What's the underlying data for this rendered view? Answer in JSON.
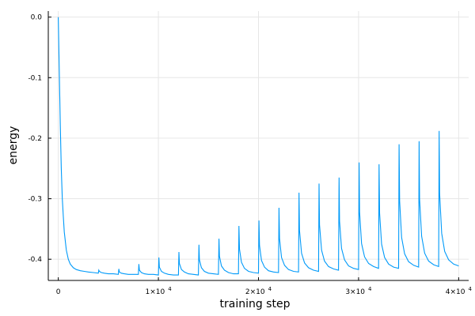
{
  "chart_data": {
    "type": "line",
    "title": "",
    "xlabel": "training step",
    "ylabel": "energy",
    "xlim": [
      -1000,
      41000
    ],
    "ylim": [
      -0.435,
      0.01
    ],
    "grid": true,
    "legend": "none",
    "colors": {
      "series": "#009AF9",
      "grid": "#E6E6E6",
      "axis": "#000000"
    },
    "x_ticks": [
      {
        "value": 0,
        "mantissa": "0",
        "exp": ""
      },
      {
        "value": 10000,
        "mantissa": "1×10",
        "exp": "4"
      },
      {
        "value": 20000,
        "mantissa": "2×10",
        "exp": "4"
      },
      {
        "value": 30000,
        "mantissa": "3×10",
        "exp": "4"
      },
      {
        "value": 40000,
        "mantissa": "4×10",
        "exp": "4"
      }
    ],
    "y_ticks": [
      {
        "value": 0.0,
        "label": "0.0"
      },
      {
        "value": -0.1,
        "label": "-0.1"
      },
      {
        "value": -0.2,
        "label": "-0.2"
      },
      {
        "value": -0.3,
        "label": "-0.3"
      },
      {
        "value": -0.4,
        "label": "-0.4"
      }
    ],
    "series": [
      {
        "x": [
          0,
          100,
          200,
          300,
          400,
          500,
          600,
          800,
          1000,
          1200,
          1500,
          1800,
          2200,
          2600,
          3000,
          3500,
          4000,
          4050,
          4100,
          4300,
          4600,
          5000,
          5500,
          6000,
          6050,
          6100,
          6300,
          6600,
          7000,
          7500,
          8000,
          8050,
          8100,
          8300,
          8600,
          9000,
          9500,
          10000,
          10050,
          10100,
          10300,
          10600,
          11000,
          11500,
          12000,
          12050,
          12100,
          12300,
          12600,
          13000,
          13500,
          14000,
          14050,
          14100,
          14300,
          14600,
          15000,
          15500,
          16000,
          16050,
          16100,
          16300,
          16600,
          17000,
          17500,
          18000,
          18050,
          18100,
          18300,
          18600,
          19000,
          19500,
          20000,
          20050,
          20100,
          20300,
          20600,
          21000,
          21500,
          22000,
          22050,
          22100,
          22300,
          22600,
          23000,
          23500,
          24000,
          24050,
          24100,
          24300,
          24600,
          25000,
          25500,
          26000,
          26050,
          26100,
          26300,
          26600,
          27000,
          27500,
          28000,
          28050,
          28100,
          28300,
          28600,
          29000,
          29500,
          30000,
          30050,
          30100,
          30300,
          30600,
          31000,
          31500,
          32000,
          32050,
          32100,
          32300,
          32600,
          33000,
          33500,
          34000,
          34050,
          34100,
          34300,
          34600,
          35000,
          35500,
          36000,
          36050,
          36100,
          36300,
          36600,
          37000,
          37500,
          38000,
          38050,
          38100,
          38300,
          38600,
          39000,
          39500,
          40000
        ],
        "y": [
          0.0,
          -0.09,
          -0.18,
          -0.25,
          -0.3,
          -0.33,
          -0.355,
          -0.385,
          -0.4,
          -0.408,
          -0.414,
          -0.417,
          -0.419,
          -0.42,
          -0.421,
          -0.422,
          -0.423,
          -0.418,
          -0.42,
          -0.422,
          -0.423,
          -0.424,
          -0.424,
          -0.425,
          -0.416,
          -0.421,
          -0.423,
          -0.424,
          -0.425,
          -0.425,
          -0.425,
          -0.408,
          -0.418,
          -0.422,
          -0.424,
          -0.425,
          -0.425,
          -0.426,
          -0.397,
          -0.413,
          -0.42,
          -0.423,
          -0.425,
          -0.426,
          -0.426,
          -0.388,
          -0.407,
          -0.417,
          -0.421,
          -0.424,
          -0.425,
          -0.426,
          -0.376,
          -0.401,
          -0.414,
          -0.42,
          -0.423,
          -0.424,
          -0.425,
          -0.366,
          -0.395,
          -0.411,
          -0.418,
          -0.422,
          -0.424,
          -0.424,
          -0.345,
          -0.383,
          -0.405,
          -0.415,
          -0.42,
          -0.422,
          -0.423,
          -0.336,
          -0.377,
          -0.402,
          -0.413,
          -0.419,
          -0.421,
          -0.422,
          -0.315,
          -0.366,
          -0.397,
          -0.41,
          -0.417,
          -0.42,
          -0.421,
          -0.29,
          -0.352,
          -0.39,
          -0.406,
          -0.414,
          -0.418,
          -0.42,
          -0.275,
          -0.343,
          -0.385,
          -0.403,
          -0.412,
          -0.416,
          -0.418,
          -0.265,
          -0.337,
          -0.382,
          -0.401,
          -0.411,
          -0.415,
          -0.417,
          -0.24,
          -0.322,
          -0.374,
          -0.396,
          -0.407,
          -0.412,
          -0.415,
          -0.243,
          -0.324,
          -0.375,
          -0.397,
          -0.408,
          -0.413,
          -0.415,
          -0.21,
          -0.304,
          -0.364,
          -0.391,
          -0.404,
          -0.41,
          -0.413,
          -0.205,
          -0.301,
          -0.362,
          -0.39,
          -0.403,
          -0.409,
          -0.412,
          -0.188,
          -0.291,
          -0.357,
          -0.387,
          -0.401,
          -0.408,
          -0.411
        ]
      }
    ]
  }
}
